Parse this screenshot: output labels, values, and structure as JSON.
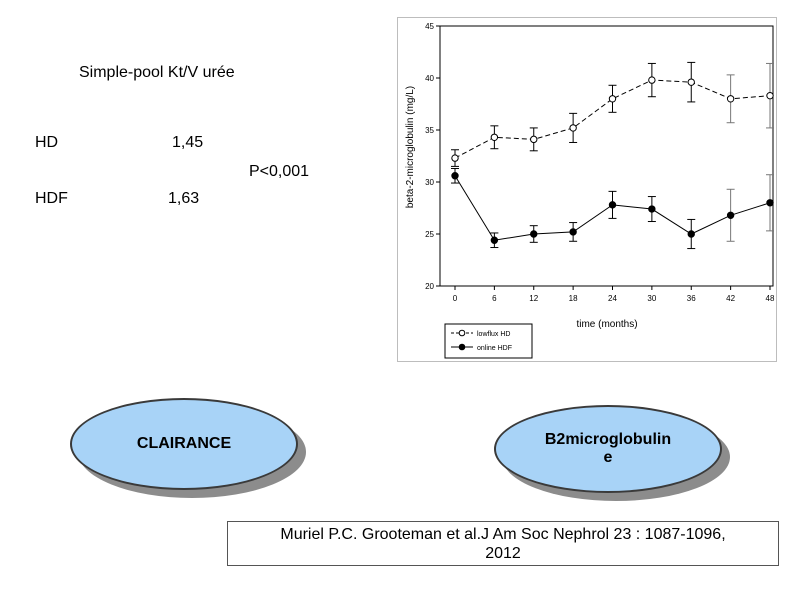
{
  "left_panel": {
    "ktv_heading": "Simple-pool Kt/V urée",
    "hd_label": "HD",
    "hd_value": "1,45",
    "pvalue": "P<0,001",
    "hdf_label": "HDF",
    "hdf_value": "1,63"
  },
  "bubbles": {
    "clairance": "CLAIRANCE",
    "b2m_line1": "B2microglobulin",
    "b2m_line2": "e"
  },
  "citation": {
    "line1": "Muriel P.C. Grooteman et al.J Am Soc Nephrol 23 : 1087-1096,",
    "line2": "2012"
  },
  "chart_data": {
    "type": "line",
    "xlabel": "time (months)",
    "ylabel": "beta-2-microglobulin (mg/L)",
    "x": [
      0,
      6,
      12,
      18,
      24,
      30,
      36,
      42,
      48
    ],
    "xlim": [
      0,
      48
    ],
    "ylim": [
      20,
      45
    ],
    "yticks": [
      20,
      25,
      30,
      35,
      40,
      45
    ],
    "legend_position": "bottom-left",
    "series": [
      {
        "name": "lowflux HD",
        "marker": "open-circle",
        "line_style": "dashed",
        "values": [
          32.3,
          34.3,
          34.1,
          35.2,
          38.0,
          39.8,
          39.6,
          38.0,
          38.3
        ],
        "err": [
          0.8,
          1.1,
          1.1,
          1.4,
          1.3,
          1.6,
          1.9,
          2.3,
          3.1
        ]
      },
      {
        "name": "online HDF",
        "marker": "filled-circle",
        "line_style": "solid",
        "values": [
          30.6,
          24.4,
          25.0,
          25.2,
          27.8,
          27.4,
          25.0,
          26.8,
          28.0
        ],
        "err": [
          0.7,
          0.7,
          0.8,
          0.9,
          1.3,
          1.2,
          1.4,
          2.5,
          2.7
        ]
      }
    ]
  }
}
